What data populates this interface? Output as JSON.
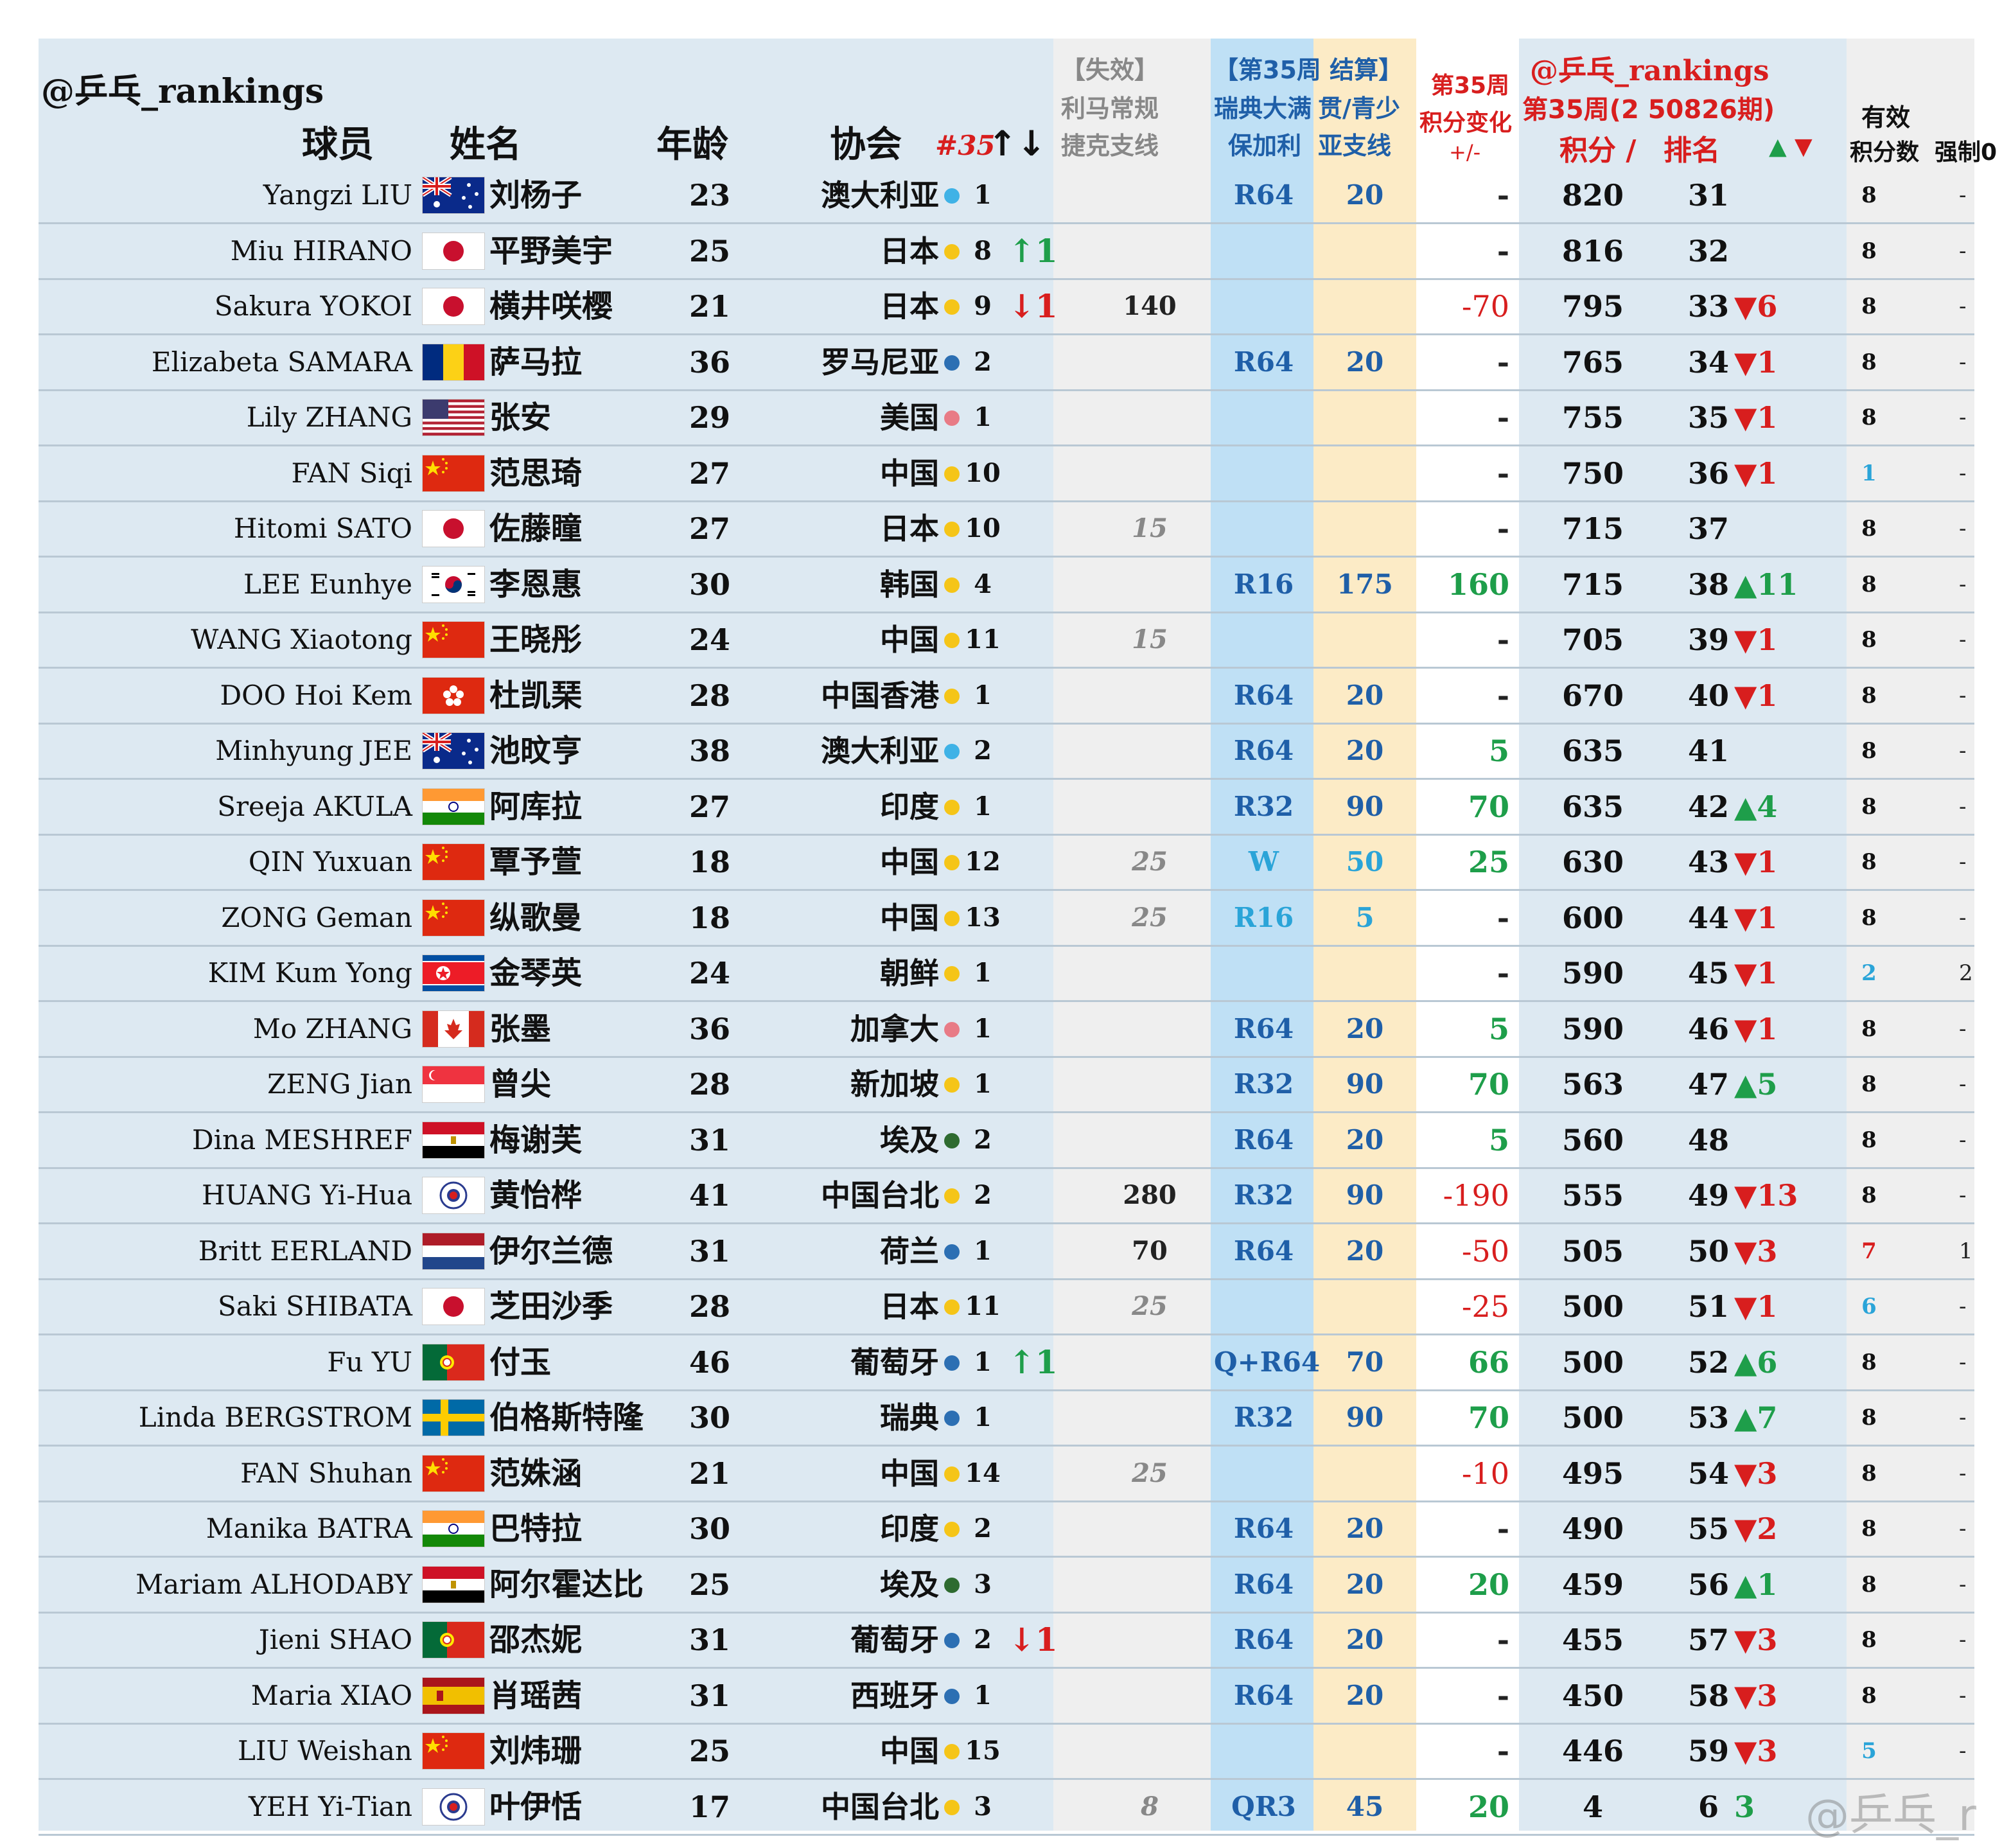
{
  "header": {
    "handle": "@乒乓_rankings",
    "col_player": "球员",
    "col_name": "姓名",
    "col_age": "年龄",
    "col_assoc": "协会",
    "col_natrank": "#35",
    "col_natrank_arrows": "↑↓",
    "col_lost_l1": "【失效】",
    "col_lost_l2": "利马常规",
    "col_lost_l3": "捷克支线",
    "col_w35_l1": "【第35周 结算】",
    "col_w35_l2a": "瑞典大满",
    "col_w35_l2b": "贯/青少",
    "col_w35_l3a": "保加利",
    "col_w35_l3b": "亚支线",
    "col_chg_l1": "第35周",
    "col_chg_l2": "积分变化",
    "col_chg_l3": "+/-",
    "col_rank_l1": "@乒乓_rankings",
    "col_rank_l2": "第35周(2 50826期)",
    "col_score": "积分 /",
    "col_rank": "排名",
    "col_rank_arrows_up": "▲",
    "col_rank_arrows_dn": "▼",
    "col_valid_l1": "有效",
    "col_valid_l2": "积分数",
    "col_force": "强制0"
  },
  "colors": {
    "band_name": "#dde9f2",
    "band_lost": "#efefef",
    "band_result": "#bfe0f5",
    "band_points": "#fcebc6",
    "band_change": "#ffffff",
    "band_rank": "#dde9f2",
    "band_valid": "#efefef",
    "dot_yellow": "#f5c518",
    "dot_blue": "#2c6fb3",
    "dot_lightblue": "#3fb2e6",
    "dot_pink": "#e87b86",
    "dot_green": "#2e6b30",
    "valid_blue": "#2aa4d8",
    "valid_red": "#d81e1e"
  },
  "rows": [
    {
      "en": "Yangzi LIU",
      "flag": "au",
      "cn": "刘杨子",
      "age": "23",
      "assoc": "澳大利亚",
      "dot": "lightblue",
      "nrank": "1",
      "narrow": "",
      "narrow_dir": "",
      "lost": "",
      "lost_it": false,
      "res": "R64",
      "pts": "20",
      "chg": "-",
      "chg_type": "neu",
      "score": "820",
      "rank": "31",
      "rchg": "",
      "rchg_dir": "",
      "valid": "8",
      "valid_color": "",
      "force": "-"
    },
    {
      "en": "Miu HIRANO",
      "flag": "jp",
      "cn": "平野美宇",
      "age": "25",
      "assoc": "日本",
      "dot": "yellow",
      "nrank": "8",
      "narrow": "↑1",
      "narrow_dir": "up",
      "lost": "",
      "lost_it": false,
      "res": "",
      "pts": "",
      "chg": "-",
      "chg_type": "neu",
      "score": "816",
      "rank": "32",
      "rchg": "",
      "rchg_dir": "",
      "valid": "8",
      "valid_color": "",
      "force": "-"
    },
    {
      "en": "Sakura YOKOI",
      "flag": "jp",
      "cn": "横井咲樱",
      "age": "21",
      "assoc": "日本",
      "dot": "yellow",
      "nrank": "9",
      "narrow": "↓1",
      "narrow_dir": "dn",
      "lost": "140",
      "lost_it": false,
      "res": "",
      "pts": "",
      "chg": "-70",
      "chg_type": "neg",
      "score": "795",
      "rank": "33",
      "rchg": "▼6",
      "rchg_dir": "dn",
      "valid": "8",
      "valid_color": "",
      "force": "-"
    },
    {
      "en": "Elizabeta SAMARA",
      "flag": "ro",
      "cn": "萨马拉",
      "age": "36",
      "assoc": "罗马尼亚",
      "dot": "blue",
      "nrank": "2",
      "narrow": "",
      "narrow_dir": "",
      "lost": "",
      "lost_it": false,
      "res": "R64",
      "pts": "20",
      "chg": "-",
      "chg_type": "neu",
      "score": "765",
      "rank": "34",
      "rchg": "▼1",
      "rchg_dir": "dn",
      "valid": "8",
      "valid_color": "",
      "force": "-"
    },
    {
      "en": "Lily ZHANG",
      "flag": "us",
      "cn": "张安",
      "age": "29",
      "assoc": "美国",
      "dot": "pink",
      "nrank": "1",
      "narrow": "",
      "narrow_dir": "",
      "lost": "",
      "lost_it": false,
      "res": "",
      "pts": "",
      "chg": "-",
      "chg_type": "neu",
      "score": "755",
      "rank": "35",
      "rchg": "▼1",
      "rchg_dir": "dn",
      "valid": "8",
      "valid_color": "",
      "force": "-"
    },
    {
      "en": "FAN Siqi",
      "flag": "cn",
      "cn": "范思琦",
      "age": "27",
      "assoc": "中国",
      "dot": "yellow",
      "nrank": "10",
      "narrow": "",
      "narrow_dir": "",
      "lost": "",
      "lost_it": false,
      "res": "",
      "pts": "",
      "chg": "-",
      "chg_type": "neu",
      "score": "750",
      "rank": "36",
      "rchg": "▼1",
      "rchg_dir": "dn",
      "valid": "1",
      "valid_color": "blue",
      "force": "-"
    },
    {
      "en": "Hitomi SATO",
      "flag": "jp",
      "cn": "佐藤瞳",
      "age": "27",
      "assoc": "日本",
      "dot": "yellow",
      "nrank": "10",
      "narrow": "",
      "narrow_dir": "",
      "lost": "15",
      "lost_it": true,
      "res": "",
      "pts": "",
      "chg": "-",
      "chg_type": "neu",
      "score": "715",
      "rank": "37",
      "rchg": "",
      "rchg_dir": "",
      "valid": "8",
      "valid_color": "",
      "force": "-"
    },
    {
      "en": "LEE Eunhye",
      "flag": "kr",
      "cn": "李恩惠",
      "age": "30",
      "assoc": "韩国",
      "dot": "yellow",
      "nrank": "4",
      "narrow": "",
      "narrow_dir": "",
      "lost": "",
      "lost_it": false,
      "res": "R16",
      "pts": "175",
      "chg": "160",
      "chg_type": "pos",
      "score": "715",
      "rank": "38",
      "rchg": "▲11",
      "rchg_dir": "up",
      "valid": "8",
      "valid_color": "",
      "force": "-"
    },
    {
      "en": "WANG Xiaotong",
      "flag": "cn",
      "cn": "王晓彤",
      "age": "24",
      "assoc": "中国",
      "dot": "yellow",
      "nrank": "11",
      "narrow": "",
      "narrow_dir": "",
      "lost": "15",
      "lost_it": true,
      "res": "",
      "pts": "",
      "chg": "-",
      "chg_type": "neu",
      "score": "705",
      "rank": "39",
      "rchg": "▼1",
      "rchg_dir": "dn",
      "valid": "8",
      "valid_color": "",
      "force": "-"
    },
    {
      "en": "DOO Hoi Kem",
      "flag": "hk",
      "cn": "杜凯琹",
      "age": "28",
      "assoc": "中国香港",
      "dot": "yellow",
      "nrank": "1",
      "narrow": "",
      "narrow_dir": "",
      "lost": "",
      "lost_it": false,
      "res": "R64",
      "pts": "20",
      "chg": "-",
      "chg_type": "neu",
      "score": "670",
      "rank": "40",
      "rchg": "▼1",
      "rchg_dir": "dn",
      "valid": "8",
      "valid_color": "",
      "force": "-"
    },
    {
      "en": "Minhyung JEE",
      "flag": "au",
      "cn": "池旼亨",
      "age": "38",
      "assoc": "澳大利亚",
      "dot": "lightblue",
      "nrank": "2",
      "narrow": "",
      "narrow_dir": "",
      "lost": "",
      "lost_it": false,
      "res": "R64",
      "pts": "20",
      "chg": "5",
      "chg_type": "pos",
      "score": "635",
      "rank": "41",
      "rchg": "",
      "rchg_dir": "",
      "valid": "8",
      "valid_color": "",
      "force": "-"
    },
    {
      "en": "Sreeja AKULA",
      "flag": "in",
      "cn": "阿库拉",
      "age": "27",
      "assoc": "印度",
      "dot": "yellow",
      "nrank": "1",
      "narrow": "",
      "narrow_dir": "",
      "lost": "",
      "lost_it": false,
      "res": "R32",
      "pts": "90",
      "chg": "70",
      "chg_type": "pos",
      "score": "635",
      "rank": "42",
      "rchg": "▲4",
      "rchg_dir": "up",
      "valid": "8",
      "valid_color": "",
      "force": "-"
    },
    {
      "en": "QIN Yuxuan",
      "flag": "cn",
      "cn": "覃予萱",
      "age": "18",
      "assoc": "中国",
      "dot": "yellow",
      "nrank": "12",
      "narrow": "",
      "narrow_dir": "",
      "lost": "25",
      "lost_it": true,
      "res": "W",
      "pts": "50",
      "chg": "25",
      "chg_type": "pos",
      "score": "630",
      "rank": "43",
      "rchg": "▼1",
      "rchg_dir": "dn",
      "valid": "8",
      "valid_color": "",
      "force": "-",
      "pts_light": true,
      "res_light": true
    },
    {
      "en": "ZONG Geman",
      "flag": "cn",
      "cn": "纵歌曼",
      "age": "18",
      "assoc": "中国",
      "dot": "yellow",
      "nrank": "13",
      "narrow": "",
      "narrow_dir": "",
      "lost": "25",
      "lost_it": true,
      "res": "R16",
      "pts": "5",
      "chg": "-",
      "chg_type": "neu",
      "score": "600",
      "rank": "44",
      "rchg": "▼1",
      "rchg_dir": "dn",
      "valid": "8",
      "valid_color": "",
      "force": "-",
      "pts_light": true,
      "res_light": true
    },
    {
      "en": "KIM Kum Yong",
      "flag": "kp",
      "cn": "金琴英",
      "age": "24",
      "assoc": "朝鲜",
      "dot": "yellow",
      "nrank": "1",
      "narrow": "",
      "narrow_dir": "",
      "lost": "",
      "lost_it": false,
      "res": "",
      "pts": "",
      "chg": "-",
      "chg_type": "neu",
      "score": "590",
      "rank": "45",
      "rchg": "▼1",
      "rchg_dir": "dn",
      "valid": "2",
      "valid_color": "blue",
      "force": "2"
    },
    {
      "en": "Mo ZHANG",
      "flag": "ca",
      "cn": "张墨",
      "age": "36",
      "assoc": "加拿大",
      "dot": "pink",
      "nrank": "1",
      "narrow": "",
      "narrow_dir": "",
      "lost": "",
      "lost_it": false,
      "res": "R64",
      "pts": "20",
      "chg": "5",
      "chg_type": "pos",
      "score": "590",
      "rank": "46",
      "rchg": "▼1",
      "rchg_dir": "dn",
      "valid": "8",
      "valid_color": "",
      "force": "-"
    },
    {
      "en": "ZENG Jian",
      "flag": "sg",
      "cn": "曾尖",
      "age": "28",
      "assoc": "新加坡",
      "dot": "yellow",
      "nrank": "1",
      "narrow": "",
      "narrow_dir": "",
      "lost": "",
      "lost_it": false,
      "res": "R32",
      "pts": "90",
      "chg": "70",
      "chg_type": "pos",
      "score": "563",
      "rank": "47",
      "rchg": "▲5",
      "rchg_dir": "up",
      "valid": "8",
      "valid_color": "",
      "force": "-"
    },
    {
      "en": "Dina MESHREF",
      "flag": "eg",
      "cn": "梅谢芙",
      "age": "31",
      "assoc": "埃及",
      "dot": "green",
      "nrank": "2",
      "narrow": "",
      "narrow_dir": "",
      "lost": "",
      "lost_it": false,
      "res": "R64",
      "pts": "20",
      "chg": "5",
      "chg_type": "pos",
      "score": "560",
      "rank": "48",
      "rchg": "",
      "rchg_dir": "",
      "valid": "8",
      "valid_color": "",
      "force": "-"
    },
    {
      "en": "HUANG Yi-Hua",
      "flag": "tpe",
      "cn": "黄怡桦",
      "age": "41",
      "assoc": "中国台北",
      "dot": "yellow",
      "nrank": "2",
      "narrow": "",
      "narrow_dir": "",
      "lost": "280",
      "lost_it": false,
      "res": "R32",
      "pts": "90",
      "chg": "-190",
      "chg_type": "neg",
      "score": "555",
      "rank": "49",
      "rchg": "▼13",
      "rchg_dir": "dn",
      "valid": "8",
      "valid_color": "",
      "force": "-"
    },
    {
      "en": "Britt EERLAND",
      "flag": "nl",
      "cn": "伊尔兰德",
      "age": "31",
      "assoc": "荷兰",
      "dot": "blue",
      "nrank": "1",
      "narrow": "",
      "narrow_dir": "",
      "lost": "70",
      "lost_it": false,
      "res": "R64",
      "pts": "20",
      "chg": "-50",
      "chg_type": "neg",
      "score": "505",
      "rank": "50",
      "rchg": "▼3",
      "rchg_dir": "dn",
      "valid": "7",
      "valid_color": "red",
      "force": "1"
    },
    {
      "en": "Saki SHIBATA",
      "flag": "jp",
      "cn": "芝田沙季",
      "age": "28",
      "assoc": "日本",
      "dot": "yellow",
      "nrank": "11",
      "narrow": "",
      "narrow_dir": "",
      "lost": "25",
      "lost_it": true,
      "res": "",
      "pts": "",
      "chg": "-25",
      "chg_type": "neg",
      "score": "500",
      "rank": "51",
      "rchg": "▼1",
      "rchg_dir": "dn",
      "valid": "6",
      "valid_color": "blue",
      "force": "-"
    },
    {
      "en": "Fu YU",
      "flag": "pt",
      "cn": "付玉",
      "age": "46",
      "assoc": "葡萄牙",
      "dot": "blue",
      "nrank": "1",
      "narrow": "↑1",
      "narrow_dir": "up",
      "lost": "",
      "lost_it": false,
      "res": "Q+R64",
      "pts": "70",
      "chg": "66",
      "chg_type": "pos",
      "score": "500",
      "rank": "52",
      "rchg": "▲6",
      "rchg_dir": "up",
      "valid": "8",
      "valid_color": "",
      "force": "-"
    },
    {
      "en": "Linda BERGSTROM",
      "flag": "se",
      "cn": "伯格斯特隆",
      "age": "30",
      "assoc": "瑞典",
      "dot": "blue",
      "nrank": "1",
      "narrow": "",
      "narrow_dir": "",
      "lost": "",
      "lost_it": false,
      "res": "R32",
      "pts": "90",
      "chg": "70",
      "chg_type": "pos",
      "score": "500",
      "rank": "53",
      "rchg": "▲7",
      "rchg_dir": "up",
      "valid": "8",
      "valid_color": "",
      "force": "-"
    },
    {
      "en": "FAN Shuhan",
      "flag": "cn",
      "cn": "范姝涵",
      "age": "21",
      "assoc": "中国",
      "dot": "yellow",
      "nrank": "14",
      "narrow": "",
      "narrow_dir": "",
      "lost": "25",
      "lost_it": true,
      "res": "",
      "pts": "",
      "chg": "-10",
      "chg_type": "neg",
      "score": "495",
      "rank": "54",
      "rchg": "▼3",
      "rchg_dir": "dn",
      "valid": "8",
      "valid_color": "",
      "force": "-"
    },
    {
      "en": "Manika BATRA",
      "flag": "in",
      "cn": "巴特拉",
      "age": "30",
      "assoc": "印度",
      "dot": "yellow",
      "nrank": "2",
      "narrow": "",
      "narrow_dir": "",
      "lost": "",
      "lost_it": false,
      "res": "R64",
      "pts": "20",
      "chg": "-",
      "chg_type": "neu",
      "score": "490",
      "rank": "55",
      "rchg": "▼2",
      "rchg_dir": "dn",
      "valid": "8",
      "valid_color": "",
      "force": "-"
    },
    {
      "en": "Mariam ALHODABY",
      "flag": "eg",
      "cn": "阿尔霍达比",
      "age": "25",
      "assoc": "埃及",
      "dot": "green",
      "nrank": "3",
      "narrow": "",
      "narrow_dir": "",
      "lost": "",
      "lost_it": false,
      "res": "R64",
      "pts": "20",
      "chg": "20",
      "chg_type": "pos",
      "score": "459",
      "rank": "56",
      "rchg": "▲1",
      "rchg_dir": "up",
      "valid": "8",
      "valid_color": "",
      "force": "-"
    },
    {
      "en": "Jieni SHAO",
      "flag": "pt",
      "cn": "邵杰妮",
      "age": "31",
      "assoc": "葡萄牙",
      "dot": "blue",
      "nrank": "2",
      "narrow": "↓1",
      "narrow_dir": "dn",
      "lost": "",
      "lost_it": false,
      "res": "R64",
      "pts": "20",
      "chg": "-",
      "chg_type": "neu",
      "score": "455",
      "rank": "57",
      "rchg": "▼3",
      "rchg_dir": "dn",
      "valid": "8",
      "valid_color": "",
      "force": "-"
    },
    {
      "en": "Maria XIAO",
      "flag": "es",
      "cn": "肖瑶茜",
      "age": "31",
      "assoc": "西班牙",
      "dot": "blue",
      "nrank": "1",
      "narrow": "",
      "narrow_dir": "",
      "lost": "",
      "lost_it": false,
      "res": "R64",
      "pts": "20",
      "chg": "-",
      "chg_type": "neu",
      "score": "450",
      "rank": "58",
      "rchg": "▼3",
      "rchg_dir": "dn",
      "valid": "8",
      "valid_color": "",
      "force": "-"
    },
    {
      "en": "LIU Weishan",
      "flag": "cn",
      "cn": "刘炜珊",
      "age": "25",
      "assoc": "中国",
      "dot": "yellow",
      "nrank": "15",
      "narrow": "",
      "narrow_dir": "",
      "lost": "",
      "lost_it": false,
      "res": "",
      "pts": "",
      "chg": "-",
      "chg_type": "neu",
      "score": "446",
      "rank": "59",
      "rchg": "▼3",
      "rchg_dir": "dn",
      "valid": "5",
      "valid_color": "blue",
      "force": "-"
    },
    {
      "en": "YEH Yi-Tian",
      "flag": "tpe",
      "cn": "叶伊恬",
      "age": "17",
      "assoc": "中国台北",
      "dot": "yellow",
      "nrank": "3",
      "narrow": "",
      "narrow_dir": "",
      "lost": "8",
      "lost_it": true,
      "res": "QR3",
      "pts": "45",
      "chg": "20",
      "chg_type": "pos",
      "score": "4",
      "rank": "6",
      "rchg": "3",
      "rchg_dir": "up",
      "valid": "",
      "valid_color": "",
      "force": ""
    }
  ],
  "watermark": "@乒乓_r"
}
